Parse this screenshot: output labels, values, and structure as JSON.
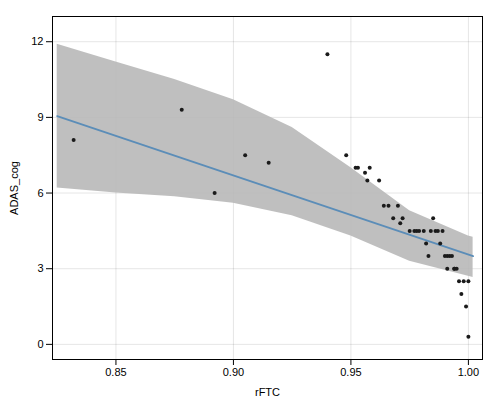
{
  "chart_data": {
    "type": "scatter",
    "xlabel": "rFTC",
    "ylabel": "ADAS_cog",
    "x": [
      0.832,
      0.878,
      0.892,
      0.905,
      0.915,
      0.94,
      0.948,
      0.952,
      0.953,
      0.956,
      0.957,
      0.958,
      0.962,
      0.964,
      0.966,
      0.968,
      0.97,
      0.971,
      0.972,
      0.975,
      0.977,
      0.978,
      0.979,
      0.981,
      0.982,
      0.983,
      0.984,
      0.985,
      0.986,
      0.987,
      0.988,
      0.989,
      0.99,
      0.991,
      0.991,
      0.992,
      0.993,
      0.994,
      0.994,
      0.995,
      0.996,
      0.997,
      0.998,
      0.999,
      1.0,
      1.0
    ],
    "values": [
      8.1,
      9.3,
      6.0,
      7.5,
      7.2,
      11.5,
      7.5,
      7.0,
      7.0,
      6.8,
      6.5,
      7.0,
      6.5,
      5.5,
      5.5,
      5.0,
      5.5,
      4.8,
      5.0,
      4.5,
      4.5,
      4.5,
      4.5,
      4.5,
      4.0,
      3.5,
      4.5,
      5.0,
      4.5,
      4.5,
      4.0,
      4.5,
      3.5,
      3.5,
      3.0,
      3.5,
      3.5,
      3.0,
      3.0,
      3.0,
      2.5,
      2.0,
      2.5,
      1.5,
      2.5,
      0.3
    ],
    "color": "#1a1a1a",
    "line": {
      "type": "line",
      "x": [
        0.825,
        1.002
      ],
      "values": [
        9.05,
        3.5
      ],
      "color": "#5B8DB8"
    },
    "band": {
      "x": [
        0.825,
        0.85,
        0.875,
        0.9,
        0.925,
        0.95,
        0.975,
        1.0,
        1.002
      ],
      "upper": [
        11.9,
        11.2,
        10.5,
        9.7,
        8.6,
        7.0,
        5.3,
        4.3,
        4.25
      ],
      "lower": [
        6.2,
        6.0,
        5.85,
        5.6,
        5.1,
        4.3,
        3.3,
        2.7,
        2.65
      ],
      "color": "#B8B8B8"
    },
    "xlim": [
      0.823,
      1.006
    ],
    "ylim": [
      -0.6,
      13.0
    ],
    "xticks": [
      0.85,
      {
        "value": 0.9,
        "label": "0.90"
      },
      0.95,
      {
        "value": 1,
        "label": "1.00"
      }
    ],
    "yticks": [
      0,
      3,
      6,
      9,
      12
    ],
    "grid": true
  }
}
